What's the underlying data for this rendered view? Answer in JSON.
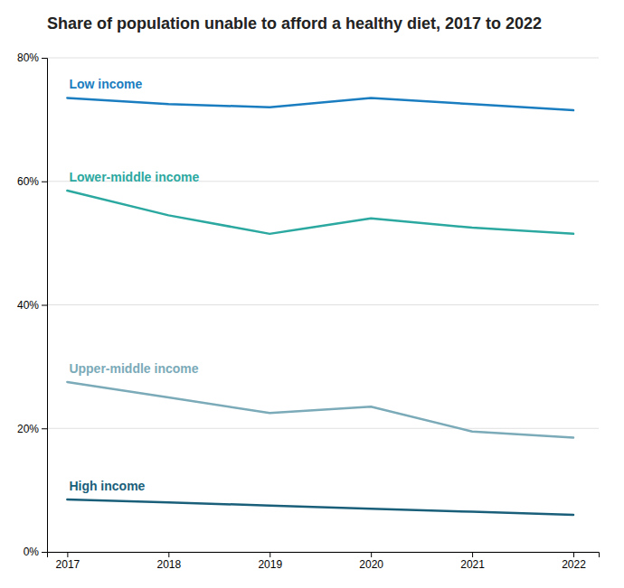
{
  "chart_data": {
    "type": "line",
    "title": "Share of population unable to afford a healthy diet, 2017 to 2022",
    "x": [
      2017,
      2018,
      2019,
      2020,
      2021,
      2022
    ],
    "series": [
      {
        "name": "Low income",
        "color": "#1A7DC0",
        "values": [
          73.5,
          72.5,
          72.0,
          73.5,
          72.5,
          71.5
        ]
      },
      {
        "name": "Lower-middle income",
        "color": "#2BA8A0",
        "values": [
          58.5,
          54.5,
          51.5,
          54.0,
          52.5,
          51.5
        ]
      },
      {
        "name": "Upper-middle income",
        "color": "#7BAAB8",
        "values": [
          27.5,
          25.0,
          22.5,
          23.5,
          19.5,
          18.5
        ]
      },
      {
        "name": "High income",
        "color": "#1A5F7A",
        "values": [
          8.5,
          8.0,
          7.5,
          7.0,
          6.5,
          6.0
        ]
      }
    ],
    "xlim": [
      2016.8,
      2022.25
    ],
    "xticks": [
      2017,
      2018,
      2019,
      2020,
      2021,
      2022
    ],
    "ylim": [
      0,
      80
    ],
    "yticks": [
      {
        "value": 0,
        "label": "0%"
      },
      {
        "value": 20,
        "label": "20%"
      },
      {
        "value": 40,
        "label": "40%"
      },
      {
        "value": 60,
        "label": "60%"
      },
      {
        "value": 80,
        "label": "80%"
      }
    ],
    "grid": true
  }
}
